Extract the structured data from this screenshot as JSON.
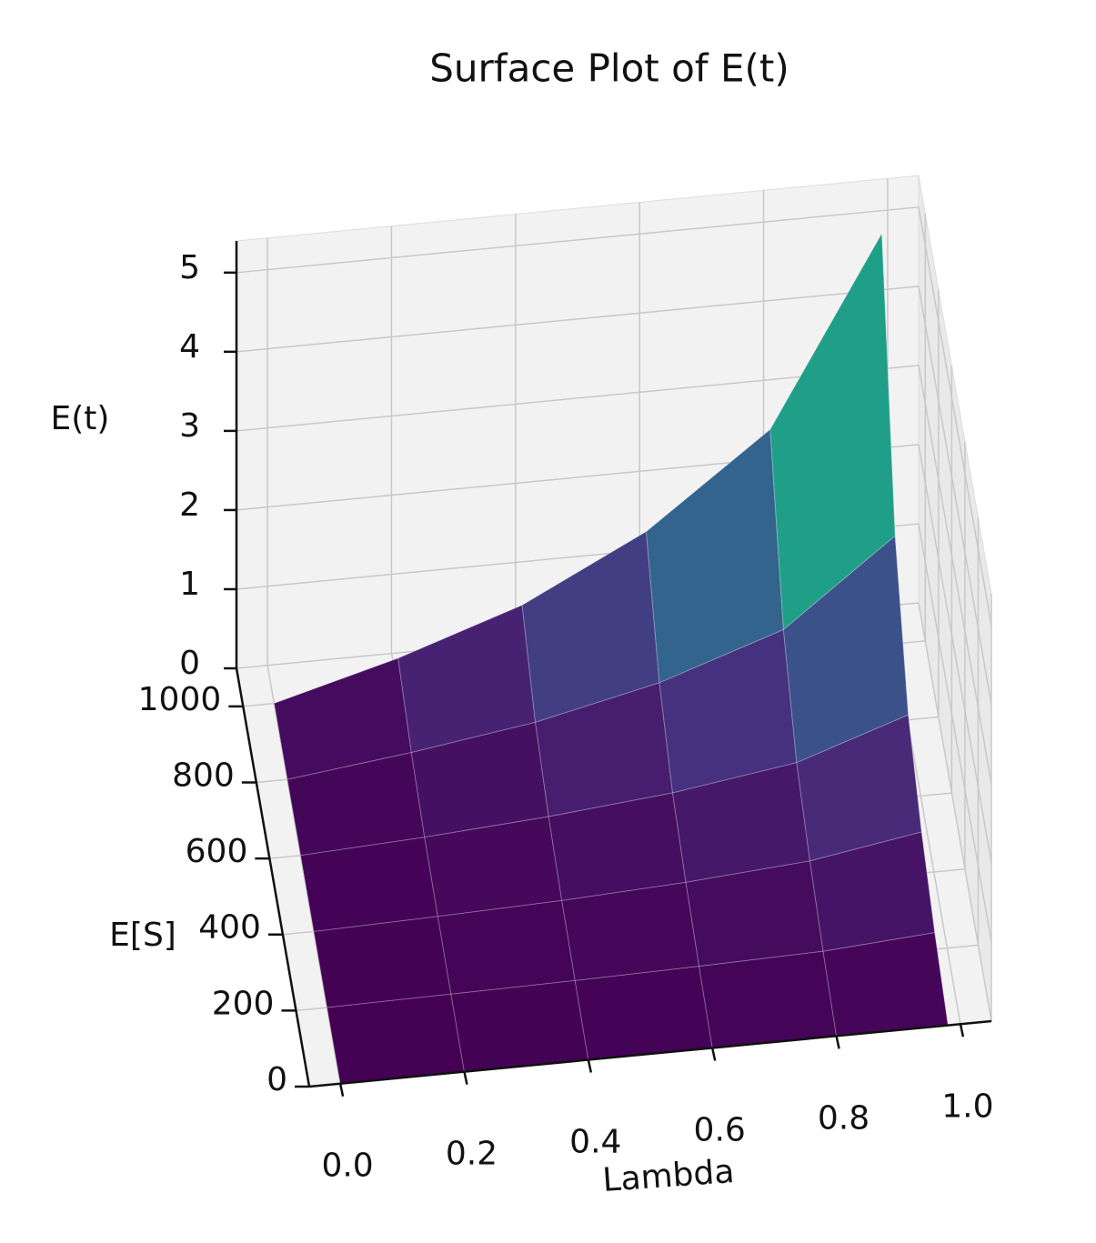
{
  "chart_data": {
    "type": "surface",
    "title": "Surface Plot of E(t)",
    "xlabel": "Lambda",
    "ylabel": "E[S]",
    "zlabel": "E(t)",
    "x": [
      0,
      0.2,
      0.4,
      0.6,
      0.8,
      0.98
    ],
    "y": [
      1,
      200,
      400,
      600,
      800,
      1000
    ],
    "z": [
      [
        0,
        0,
        0,
        0,
        0,
        0
      ],
      [
        0,
        0.02,
        0.04,
        0.07,
        0.11,
        0.21
      ],
      [
        0,
        0.04,
        0.09,
        0.17,
        0.29,
        0.52
      ],
      [
        0,
        0.08,
        0.19,
        0.34,
        0.57,
        1.04
      ],
      [
        0,
        0.19,
        0.42,
        0.77,
        1.29,
        2.34
      ],
      [
        0,
        0.42,
        0.94,
        1.72,
        2.86,
        5.2
      ]
    ],
    "colormap": "viridis",
    "xlim": [
      -0.05,
      1.05
    ],
    "ylim": [
      0,
      1100
    ],
    "zlim": [
      0,
      5.4
    ],
    "xticks": [
      {
        "value": 0,
        "label": "0.0"
      },
      0.2,
      0.4,
      0.6,
      0.8,
      {
        "value": 1,
        "label": "1.0"
      }
    ],
    "yticks": [
      0,
      200,
      400,
      600,
      800,
      1000
    ],
    "zticks": [
      0,
      1,
      2,
      3,
      4,
      5
    ],
    "grid": true
  }
}
